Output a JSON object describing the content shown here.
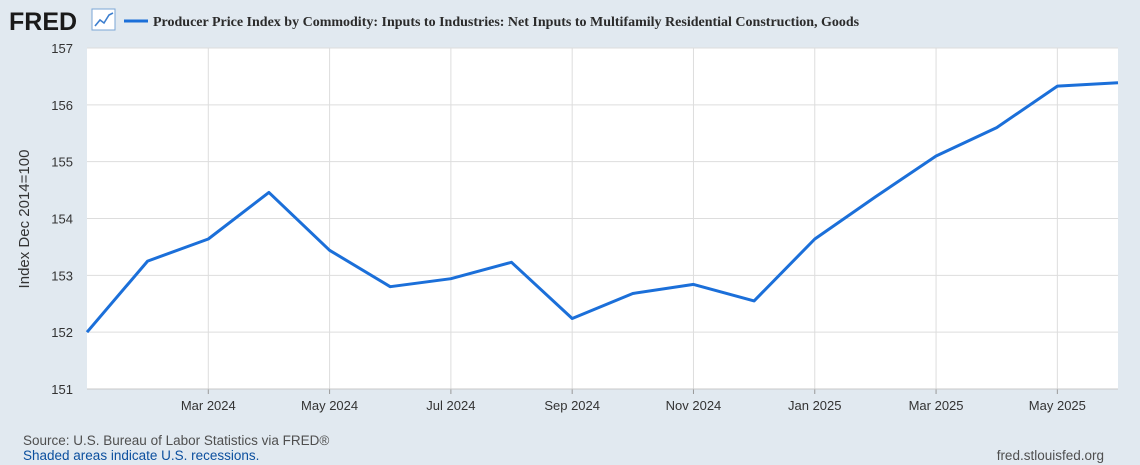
{
  "logo": {
    "text": "FRED",
    "icon": "trend-line-icon"
  },
  "footer": {
    "source": "Source: U.S. Bureau of Labor Statistics via FRED®",
    "recessions": "Shaded areas indicate U.S. recessions.",
    "site": "fred.stlouisfed.org"
  },
  "colors": {
    "background": "#e1e9f0",
    "plot_bg": "#ffffff",
    "series": "#1b6fd9",
    "grid": "#dddddd",
    "footer_link": "#0b4f9e",
    "footer_text": "#4f4f4f"
  },
  "chart_data": {
    "type": "line",
    "title": "Producer Price Index by Commodity: Inputs to Industries: Net Inputs to Multifamily Residential Construction, Goods",
    "xlabel": "",
    "ylabel": "Index Dec 2014=100",
    "ylim": [
      151,
      157
    ],
    "yticks": [
      151,
      152,
      153,
      154,
      155,
      156,
      157
    ],
    "xlim": [
      "2024-01",
      "2025-06"
    ],
    "xticks": [
      {
        "month": "2024-03",
        "label": "Mar 2024"
      },
      {
        "month": "2024-05",
        "label": "May 2024"
      },
      {
        "month": "2024-07",
        "label": "Jul 2024"
      },
      {
        "month": "2024-09",
        "label": "Sep 2024"
      },
      {
        "month": "2024-11",
        "label": "Nov 2024"
      },
      {
        "month": "2025-01",
        "label": "Jan 2025"
      },
      {
        "month": "2025-03",
        "label": "Mar 2025"
      },
      {
        "month": "2025-05",
        "label": "May 2025"
      }
    ],
    "grid": true,
    "series": [
      {
        "name": "Producer Price Index by Commodity: Inputs to Industries: Net Inputs to Multifamily Residential Construction, Goods",
        "x": [
          "2024-01",
          "2024-02",
          "2024-03",
          "2024-04",
          "2024-05",
          "2024-06",
          "2024-07",
          "2024-08",
          "2024-09",
          "2024-10",
          "2024-11",
          "2024-12",
          "2025-01",
          "2025-02",
          "2025-03",
          "2025-04",
          "2025-05",
          "2025-06"
        ],
        "values": [
          152.0,
          153.25,
          153.64,
          154.46,
          153.44,
          152.8,
          152.94,
          153.23,
          152.24,
          152.68,
          152.84,
          152.55,
          153.64,
          154.38,
          155.1,
          155.6,
          156.33,
          156.39
        ]
      }
    ]
  }
}
